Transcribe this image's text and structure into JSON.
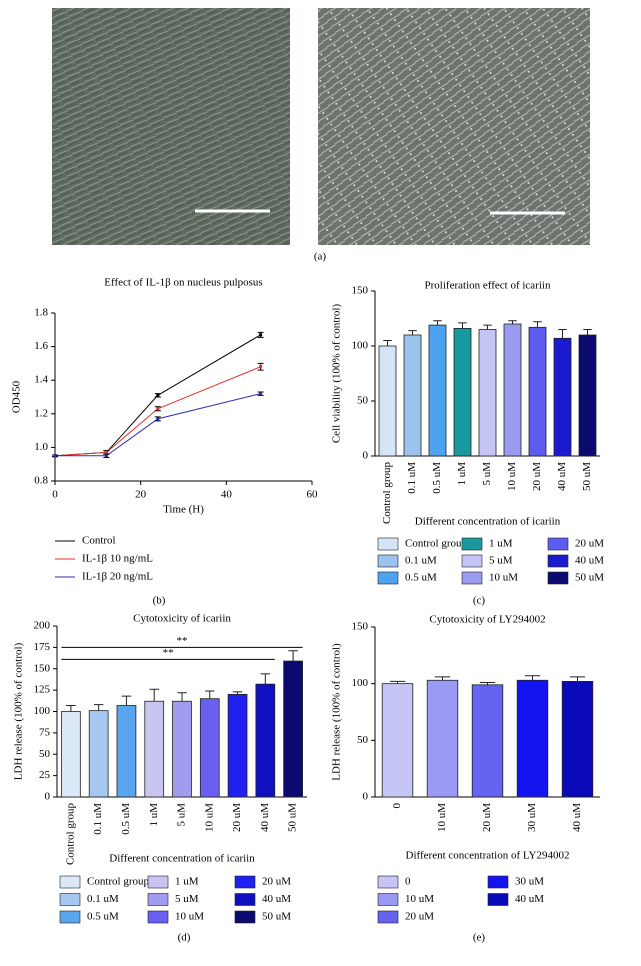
{
  "image_panel": {
    "label": "(a)"
  },
  "chart_data": [
    {
      "type": "line",
      "panel_label": "(b)",
      "title": "Effect of IL-1β on nucleus pulposus",
      "x_label": "Time (H)",
      "y_label": "OD450",
      "x": [
        0,
        12,
        24,
        48
      ],
      "series": [
        {
          "name": "Control",
          "color": "#000000",
          "values": [
            0.95,
            0.97,
            1.31,
            1.67
          ],
          "errors": [
            0.005,
            0.01,
            0.01,
            0.015
          ]
        },
        {
          "name": "IL-1β 10 ng/mL",
          "color": "#e8302a",
          "values": [
            0.95,
            0.97,
            1.23,
            1.48
          ],
          "errors": [
            0.005,
            0.01,
            0.012,
            0.02
          ]
        },
        {
          "name": "IL-1β 20 ng/mL",
          "color": "#2b2bb0",
          "values": [
            0.95,
            0.95,
            1.17,
            1.32
          ],
          "errors": [
            0.005,
            0.01,
            0.012,
            0.01
          ]
        }
      ],
      "xlim": [
        0,
        60
      ],
      "xticks": [
        0,
        20,
        40,
        60
      ],
      "ylim": [
        0.8,
        1.8
      ],
      "yticks": [
        0.8,
        {
          "value": 1.0,
          "label": "1.0"
        },
        1.2,
        1.4,
        1.6,
        1.8
      ]
    },
    {
      "type": "bar",
      "panel_label": "(c)",
      "title": "Proliferation effect of icariin",
      "y_label": "Cell viability (100% of control)",
      "x_label": "Different concentration of icariin",
      "categories": [
        "Control group",
        "0.1 uM",
        "0.5 uM",
        "1 uM",
        "5 uM",
        "10 uM",
        "20 uM",
        "40 uM",
        "50 uM"
      ],
      "values": [
        100,
        110,
        119,
        116,
        115,
        120,
        117,
        107,
        110
      ],
      "errors": [
        5,
        4,
        4,
        5,
        4,
        3,
        5,
        8,
        5
      ],
      "colors": [
        "#d6e4f7",
        "#9cc3ee",
        "#4da3f0",
        "#1a9aa0",
        "#c5c5f5",
        "#9b9bf0",
        "#5c5cf0",
        "#1a1ad0",
        "#0a0a70"
      ],
      "ylim": [
        0,
        150
      ],
      "yticks": [
        0,
        50,
        100,
        150
      ]
    },
    {
      "type": "bar",
      "panel_label": "(d)",
      "title": "Cytotoxicity of icariin",
      "y_label": "LDH release (100% of control)",
      "x_label": "Different concentration of icariin",
      "categories": [
        "Control group",
        "0.1 uM",
        "0.5 uM",
        "1 uM",
        "5 uM",
        "10 uM",
        "20 uM",
        "40 uM",
        "50 uM"
      ],
      "values": [
        100,
        101,
        107,
        112,
        112,
        115,
        120,
        132,
        159
      ],
      "errors": [
        7,
        7,
        11,
        14,
        10,
        9,
        3,
        12,
        12
      ],
      "colors": [
        "#dbe8f8",
        "#a5c8f0",
        "#5aa6ee",
        "#c9c5f2",
        "#a09cf0",
        "#6a60f0",
        "#2020f0",
        "#1010c0",
        "#0a0a70"
      ],
      "ylim": [
        0,
        200
      ],
      "yticks": [
        0,
        25,
        50,
        75,
        100,
        125,
        150,
        175,
        200
      ],
      "annotations": [
        {
          "text": "**",
          "from": 0,
          "to": 8,
          "y": 175
        },
        {
          "text": "**",
          "from": 0,
          "to": 7,
          "y": 161
        }
      ]
    },
    {
      "type": "bar",
      "panel_label": "(e)",
      "title": "Cytotoxicity of LY294002",
      "y_label": "LDH release (100% of control)",
      "x_label": "Different concentration of LY294002",
      "categories": [
        "0",
        "10 uM",
        "20 uM",
        "30 uM",
        "40 uM"
      ],
      "values": [
        100,
        103,
        99,
        103,
        102
      ],
      "errors": [
        2,
        3,
        2,
        4,
        4
      ],
      "colors": [
        "#c5c5f8",
        "#9a9af5",
        "#6464f0",
        "#1414f0",
        "#0a0ab8"
      ],
      "ylim": [
        0,
        150
      ],
      "yticks": [
        0,
        50,
        100,
        150
      ]
    }
  ]
}
